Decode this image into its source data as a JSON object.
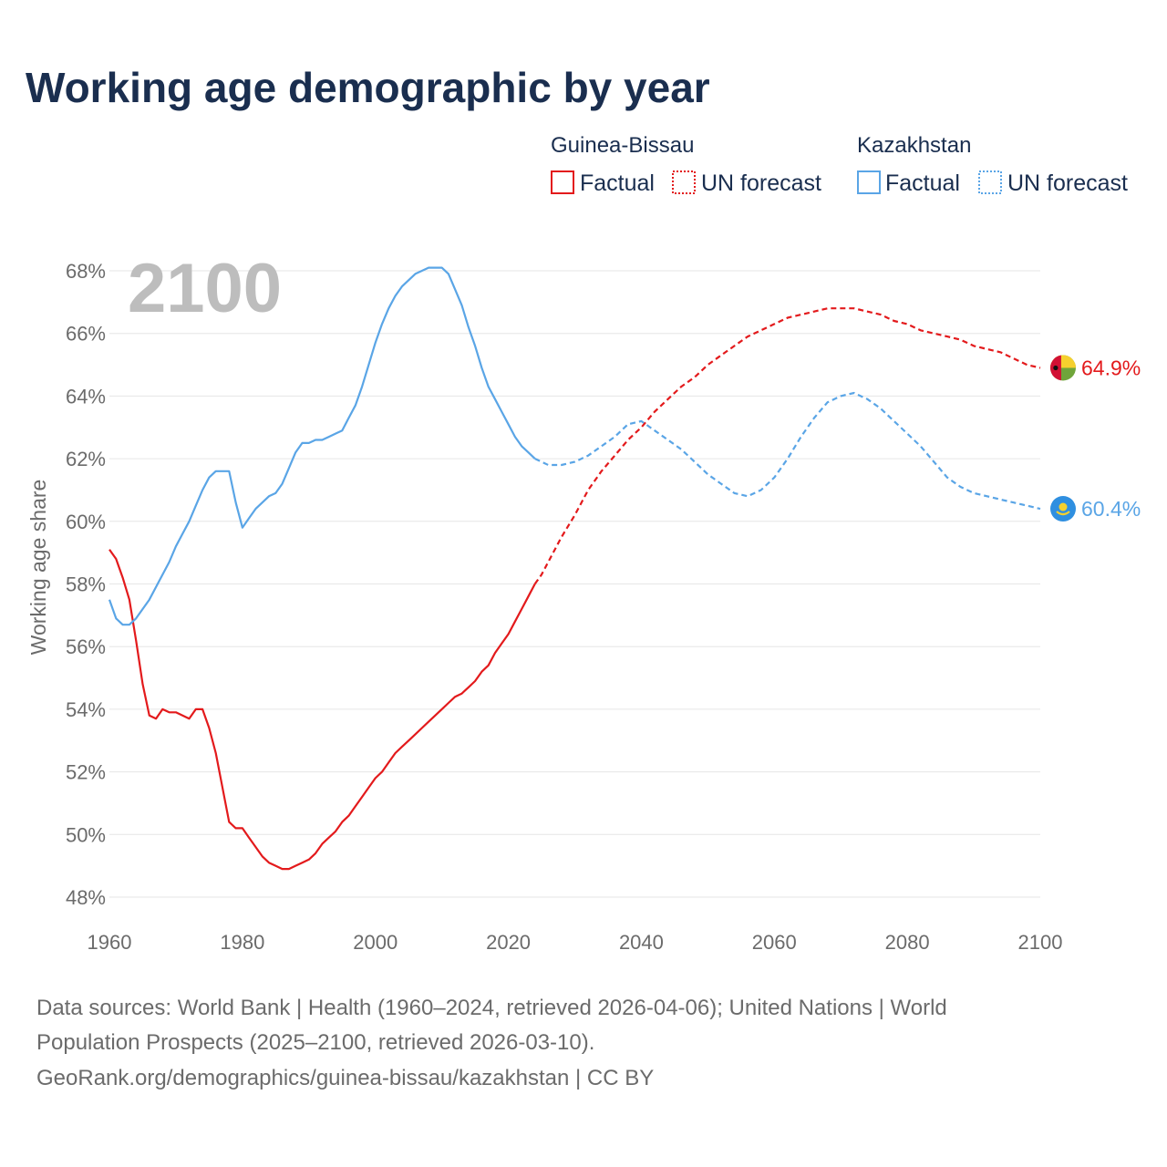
{
  "title": "Working age demographic by year",
  "legend": {
    "groups": [
      {
        "name": "Guinea-Bissau",
        "factual": "Factual",
        "forecast": "UN forecast",
        "color": "#e31a1c"
      },
      {
        "name": "Kazakhstan",
        "factual": "Factual",
        "forecast": "UN forecast",
        "color": "#5aa5e6"
      }
    ]
  },
  "year_watermark": "2100",
  "source_lines": [
    "Data sources: World Bank | Health (1960–2024, retrieved 2026-04-06); United Nations | World",
    "Population Prospects (2025–2100, retrieved 2026-03-10).",
    "GeoRank.org/demographics/guinea-bissau/kazakhstan | CC BY"
  ],
  "chart_data": {
    "type": "line",
    "title": "Working age demographic by year",
    "xlabel": "",
    "ylabel": "Working age share",
    "xlim": [
      1960,
      2100
    ],
    "ylim": [
      48,
      68
    ],
    "x_ticks": [
      1960,
      1980,
      2000,
      2020,
      2040,
      2060,
      2080,
      2100
    ],
    "y_ticks": [
      48,
      50,
      52,
      54,
      56,
      58,
      60,
      62,
      64,
      66,
      68
    ],
    "x_tick_labels": [
      "1960",
      "1980",
      "2000",
      "2020",
      "2040",
      "2060",
      "2080",
      "2100"
    ],
    "y_tick_labels": [
      "48%",
      "50%",
      "52%",
      "54%",
      "56%",
      "58%",
      "60%",
      "62%",
      "64%",
      "66%",
      "68%"
    ],
    "factual_until": 2024,
    "series": [
      {
        "name": "Guinea-Bissau",
        "color": "#e31a1c",
        "end_label": "64.9%",
        "flag": "guinea-bissau-flag",
        "x": [
          1960,
          1961,
          1962,
          1963,
          1964,
          1965,
          1966,
          1967,
          1968,
          1969,
          1970,
          1971,
          1972,
          1973,
          1974,
          1975,
          1976,
          1977,
          1978,
          1979,
          1980,
          1981,
          1982,
          1983,
          1984,
          1985,
          1986,
          1987,
          1988,
          1989,
          1990,
          1991,
          1992,
          1993,
          1994,
          1995,
          1996,
          1997,
          1998,
          1999,
          2000,
          2001,
          2002,
          2003,
          2004,
          2005,
          2006,
          2007,
          2008,
          2009,
          2010,
          2011,
          2012,
          2013,
          2014,
          2015,
          2016,
          2017,
          2018,
          2019,
          2020,
          2021,
          2022,
          2023,
          2024,
          2025,
          2028,
          2030,
          2032,
          2034,
          2036,
          2038,
          2040,
          2042,
          2044,
          2046,
          2048,
          2050,
          2052,
          2054,
          2056,
          2058,
          2060,
          2062,
          2064,
          2066,
          2068,
          2070,
          2072,
          2074,
          2076,
          2078,
          2080,
          2082,
          2084,
          2086,
          2088,
          2090,
          2092,
          2094,
          2096,
          2098,
          2100
        ],
        "values": [
          59.1,
          58.8,
          58.2,
          57.5,
          56.2,
          54.8,
          53.8,
          53.7,
          54.0,
          53.9,
          53.9,
          53.8,
          53.7,
          54.0,
          54.0,
          53.4,
          52.6,
          51.5,
          50.4,
          50.2,
          50.2,
          49.9,
          49.6,
          49.3,
          49.1,
          49.0,
          48.9,
          48.9,
          49.0,
          49.1,
          49.2,
          49.4,
          49.7,
          49.9,
          50.1,
          50.4,
          50.6,
          50.9,
          51.2,
          51.5,
          51.8,
          52.0,
          52.3,
          52.6,
          52.8,
          53.0,
          53.2,
          53.4,
          53.6,
          53.8,
          54.0,
          54.2,
          54.4,
          54.5,
          54.7,
          54.9,
          55.2,
          55.4,
          55.8,
          56.1,
          56.4,
          56.8,
          57.2,
          57.6,
          58.0,
          58.3,
          59.5,
          60.2,
          61.0,
          61.6,
          62.1,
          62.6,
          63.0,
          63.5,
          63.9,
          64.3,
          64.6,
          65.0,
          65.3,
          65.6,
          65.9,
          66.1,
          66.3,
          66.5,
          66.6,
          66.7,
          66.8,
          66.8,
          66.8,
          66.7,
          66.6,
          66.4,
          66.3,
          66.1,
          66.0,
          65.9,
          65.8,
          65.6,
          65.5,
          65.4,
          65.2,
          65.0,
          64.9
        ]
      },
      {
        "name": "Kazakhstan",
        "color": "#5aa5e6",
        "end_label": "60.4%",
        "flag": "kazakhstan-flag",
        "x": [
          1960,
          1961,
          1962,
          1963,
          1964,
          1965,
          1966,
          1967,
          1968,
          1969,
          1970,
          1971,
          1972,
          1973,
          1974,
          1975,
          1976,
          1977,
          1978,
          1979,
          1980,
          1981,
          1982,
          1983,
          1984,
          1985,
          1986,
          1987,
          1988,
          1989,
          1990,
          1991,
          1992,
          1993,
          1994,
          1995,
          1996,
          1997,
          1998,
          1999,
          2000,
          2001,
          2002,
          2003,
          2004,
          2005,
          2006,
          2007,
          2008,
          2009,
          2010,
          2011,
          2012,
          2013,
          2014,
          2015,
          2016,
          2017,
          2018,
          2019,
          2020,
          2021,
          2022,
          2023,
          2024,
          2026,
          2028,
          2030,
          2032,
          2034,
          2036,
          2038,
          2040,
          2042,
          2044,
          2046,
          2048,
          2050,
          2052,
          2054,
          2056,
          2058,
          2060,
          2062,
          2064,
          2066,
          2068,
          2070,
          2072,
          2074,
          2076,
          2078,
          2080,
          2082,
          2084,
          2086,
          2088,
          2090,
          2092,
          2094,
          2096,
          2098,
          2100
        ],
        "values": [
          57.5,
          56.9,
          56.7,
          56.7,
          56.9,
          57.2,
          57.5,
          57.9,
          58.3,
          58.7,
          59.2,
          59.6,
          60.0,
          60.5,
          61.0,
          61.4,
          61.6,
          61.6,
          61.6,
          60.6,
          59.8,
          60.1,
          60.4,
          60.6,
          60.8,
          60.9,
          61.2,
          61.7,
          62.2,
          62.5,
          62.5,
          62.6,
          62.6,
          62.7,
          62.8,
          62.9,
          63.3,
          63.7,
          64.3,
          65.0,
          65.7,
          66.3,
          66.8,
          67.2,
          67.5,
          67.7,
          67.9,
          68.0,
          68.1,
          68.1,
          68.1,
          67.9,
          67.4,
          66.9,
          66.2,
          65.6,
          64.9,
          64.3,
          63.9,
          63.5,
          63.1,
          62.7,
          62.4,
          62.2,
          62.0,
          61.8,
          61.8,
          61.9,
          62.1,
          62.4,
          62.7,
          63.1,
          63.2,
          62.9,
          62.6,
          62.3,
          61.9,
          61.5,
          61.2,
          60.9,
          60.8,
          61.0,
          61.4,
          62.0,
          62.7,
          63.3,
          63.8,
          64.0,
          64.1,
          63.9,
          63.6,
          63.2,
          62.8,
          62.4,
          61.9,
          61.4,
          61.1,
          60.9,
          60.8,
          60.7,
          60.6,
          60.5,
          60.4
        ]
      }
    ]
  }
}
